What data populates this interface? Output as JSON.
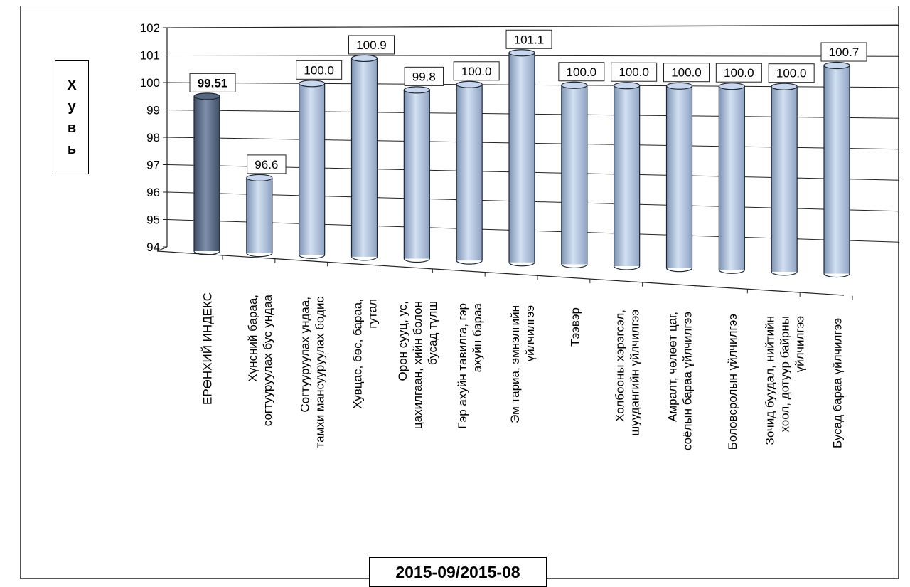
{
  "chart_data": {
    "type": "bar",
    "xlabel": "2015-09/2015-08",
    "ylabel": "Хувь",
    "ylim": [
      94,
      102
    ],
    "yticks": [
      "94",
      "95",
      "96",
      "97",
      "98",
      "99",
      "100",
      "101",
      "102"
    ],
    "grid": true,
    "categories": [
      "ЕРӨНХИЙ ИНДЕКС",
      "Хүнсний бараа, согтууруулах бус ундаа",
      "Согтууруулах ундаа, тамхи мансууруулах бодис",
      "Хувцас, бөс, бараа, гутал",
      "Орон сууц, ус, цахилгаан, хийн болон бусад түлш",
      "Гэр ахуйн тавилга, гэр ахуйн бараа",
      "Эм тариа, эмнэлгийн үйлчилгээ",
      "Тээвэр",
      "Холбооны хэрэгсэл, шуудангийн үйлчилгээ",
      "Амралт, чөлөөт цаг, соёлын бараа үйлчилгээ",
      "Боловсролын үйлчилгээ",
      "Зочид буудал, нийтийн хоол, дотуур байрны үйлчилгээ",
      "Бусад бараа үйлчилгээ"
    ],
    "values": [
      99.51,
      96.6,
      100.0,
      100.9,
      99.8,
      100.0,
      101.1,
      100.0,
      100.0,
      100.0,
      100.0,
      100.0,
      100.7
    ],
    "data_labels": [
      "99.51",
      "96.6",
      "100.0",
      "100.9",
      "99.8",
      "100.0",
      "101.1",
      "100.0",
      "100.0",
      "100.0",
      "100.0",
      "100.0",
      "100.7"
    ],
    "colors": {
      "highlight": "#5a6e89",
      "bar": "#b9cbe6",
      "bar_dark": "#7e95b5"
    }
  }
}
